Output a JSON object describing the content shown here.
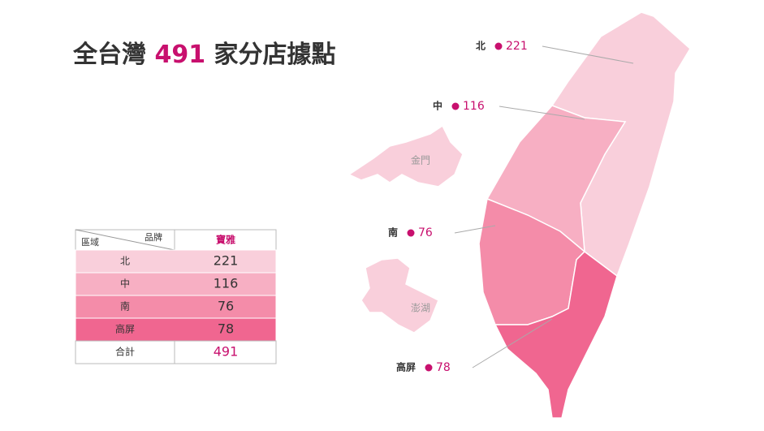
{
  "header": {
    "title_prefix": "全台灣",
    "title_number": "491",
    "title_suffix": "家分店據點"
  },
  "table": {
    "corner_top": "品牌",
    "corner_bottom": "區域",
    "column": "寶雅",
    "rows": [
      [
        "北",
        "221"
      ],
      [
        "中",
        "116"
      ],
      [
        "南",
        "76"
      ],
      [
        "高屏",
        "78"
      ]
    ],
    "total": [
      "合計",
      "491"
    ],
    "row_colors": [
      "#f9cfdb",
      "#f7afc3",
      "#f48ca9",
      "#f06690"
    ]
  },
  "map": {
    "labels": [
      {
        "region": "北",
        "count": "221"
      },
      {
        "region": "中",
        "count": "116"
      },
      {
        "region": "南",
        "count": "76"
      },
      {
        "region": "高屏",
        "count": "78"
      }
    ],
    "islands": [
      "金門",
      "澎湖"
    ]
  }
}
